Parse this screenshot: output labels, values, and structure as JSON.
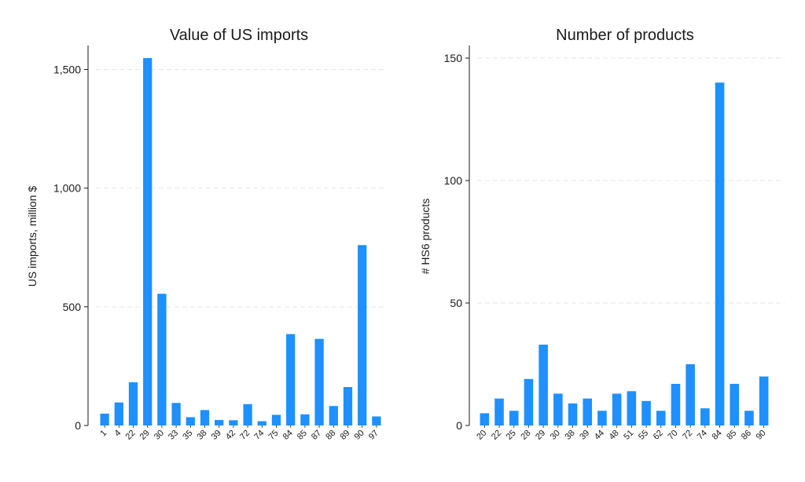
{
  "chart_data": [
    {
      "type": "bar",
      "title": "Value of US imports",
      "xlabel": "",
      "ylabel": "US imports, million $",
      "ylim": [
        0,
        1600
      ],
      "yticks": [
        0,
        500,
        1000,
        1500
      ],
      "ytick_labels": [
        "0",
        "500",
        "1,000",
        "1,500"
      ],
      "grid": true,
      "bar_color": "#1E90FF",
      "categories": [
        "1",
        "4",
        "22",
        "29",
        "30",
        "33",
        "35",
        "38",
        "39",
        "42",
        "72",
        "74",
        "75",
        "84",
        "85",
        "87",
        "88",
        "89",
        "90",
        "97"
      ],
      "values": [
        50,
        97,
        182,
        1548,
        555,
        95,
        35,
        65,
        23,
        22,
        90,
        18,
        45,
        385,
        47,
        365,
        82,
        162,
        760,
        38
      ]
    },
    {
      "type": "bar",
      "title": "Number of products",
      "xlabel": "",
      "ylabel": "# HS6 products",
      "ylim": [
        0,
        155
      ],
      "yticks": [
        0,
        50,
        100,
        150
      ],
      "ytick_labels": [
        "0",
        "50",
        "100",
        "150"
      ],
      "grid": true,
      "bar_color": "#1E90FF",
      "categories": [
        "20",
        "22",
        "25",
        "28",
        "29",
        "30",
        "38",
        "39",
        "44",
        "48",
        "51",
        "55",
        "62",
        "70",
        "72",
        "74",
        "84",
        "85",
        "86",
        "90"
      ],
      "values": [
        5,
        11,
        6,
        19,
        33,
        13,
        9,
        11,
        6,
        13,
        14,
        10,
        6,
        17,
        25,
        7,
        140,
        17,
        6,
        20
      ]
    }
  ]
}
